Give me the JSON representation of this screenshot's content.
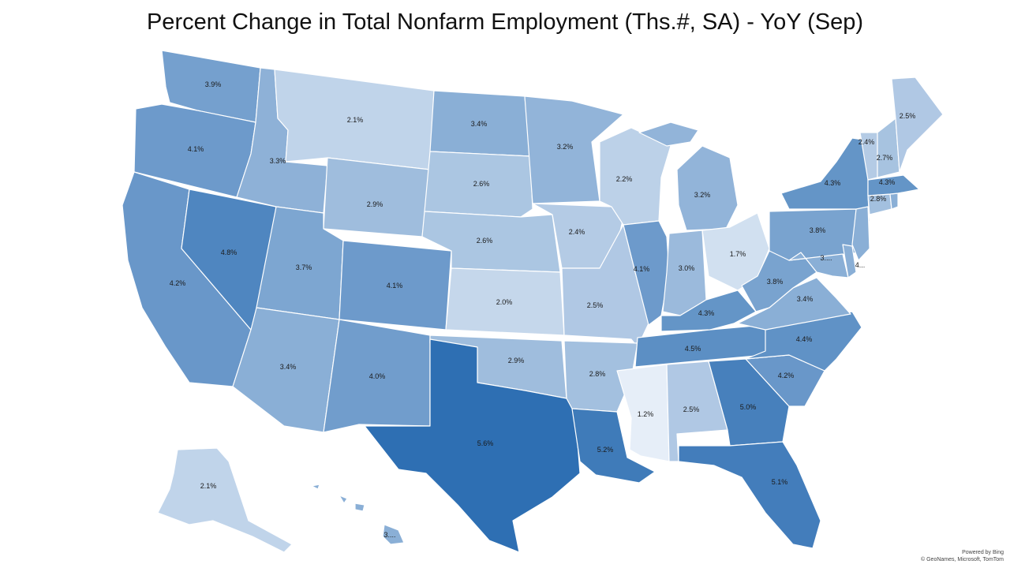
{
  "title": "Percent Change in Total Nonfarm Employment (Ths.#, SA) - YoY (Sep)",
  "credit": {
    "powered_by": "Powered by Bing",
    "sources": "© GeoNames, Microsoft, TomTom"
  },
  "color_scale": {
    "low": "#e6eef8",
    "high": "#2e6fb3",
    "min_value": 1.2,
    "max_value": 5.6
  },
  "states": [
    {
      "id": "WA",
      "value": 3.9,
      "label": "3.9%"
    },
    {
      "id": "OR",
      "value": 4.1,
      "label": "4.1%"
    },
    {
      "id": "CA",
      "value": 4.2,
      "label": "4.2%"
    },
    {
      "id": "NV",
      "value": 4.8,
      "label": "4.8%"
    },
    {
      "id": "ID",
      "value": 3.3,
      "label": "3.3%"
    },
    {
      "id": "MT",
      "value": 2.1,
      "label": "2.1%"
    },
    {
      "id": "WY",
      "value": 2.9,
      "label": "2.9%"
    },
    {
      "id": "UT",
      "value": 3.7,
      "label": "3.7%"
    },
    {
      "id": "AZ",
      "value": 3.4,
      "label": "3.4%"
    },
    {
      "id": "CO",
      "value": 4.1,
      "label": "4.1%"
    },
    {
      "id": "NM",
      "value": 4.0,
      "label": "4.0%"
    },
    {
      "id": "ND",
      "value": 3.4,
      "label": "3.4%"
    },
    {
      "id": "SD",
      "value": 2.6,
      "label": "2.6%"
    },
    {
      "id": "NE",
      "value": 2.6,
      "label": "2.6%"
    },
    {
      "id": "KS",
      "value": 2.0,
      "label": "2.0%"
    },
    {
      "id": "OK",
      "value": 2.9,
      "label": "2.9%"
    },
    {
      "id": "TX",
      "value": 5.6,
      "label": "5.6%"
    },
    {
      "id": "MN",
      "value": 3.2,
      "label": "3.2%"
    },
    {
      "id": "IA",
      "value": 2.4,
      "label": "2.4%"
    },
    {
      "id": "MO",
      "value": 2.5,
      "label": "2.5%"
    },
    {
      "id": "AR",
      "value": 2.8,
      "label": "2.8%"
    },
    {
      "id": "LA",
      "value": 5.2,
      "label": "5.2%"
    },
    {
      "id": "WI",
      "value": 2.2,
      "label": "2.2%"
    },
    {
      "id": "IL",
      "value": 4.1,
      "label": "4.1%"
    },
    {
      "id": "MI",
      "value": 3.2,
      "label": "3.2%"
    },
    {
      "id": "IN",
      "value": 3.0,
      "label": "3.0%"
    },
    {
      "id": "OH",
      "value": 1.7,
      "label": "1.7%"
    },
    {
      "id": "KY",
      "value": 4.3,
      "label": "4.3%"
    },
    {
      "id": "TN",
      "value": 4.5,
      "label": "4.5%"
    },
    {
      "id": "MS",
      "value": 1.2,
      "label": "1.2%"
    },
    {
      "id": "AL",
      "value": 2.5,
      "label": "2.5%"
    },
    {
      "id": "GA",
      "value": 5.0,
      "label": "5.0%"
    },
    {
      "id": "FL",
      "value": 5.1,
      "label": "5.1%"
    },
    {
      "id": "SC",
      "value": 4.2,
      "label": "4.2%"
    },
    {
      "id": "NC",
      "value": 4.4,
      "label": "4.4%"
    },
    {
      "id": "VA",
      "value": 3.4,
      "label": "3.4%"
    },
    {
      "id": "WV",
      "value": 3.8,
      "label": "3.8%"
    },
    {
      "id": "PA",
      "value": 3.8,
      "label": "3.8%"
    },
    {
      "id": "NY",
      "value": 4.3,
      "label": "4.3%"
    },
    {
      "id": "MD",
      "value": null,
      "label": "3...."
    },
    {
      "id": "DE",
      "value": null,
      "label": ""
    },
    {
      "id": "NJ",
      "value": null,
      "label": "4..."
    },
    {
      "id": "CT",
      "value": 2.8,
      "label": "2.8%"
    },
    {
      "id": "RI",
      "value": null,
      "label": ""
    },
    {
      "id": "MA",
      "value": 4.3,
      "label": "4.3%"
    },
    {
      "id": "VT",
      "value": 2.4,
      "label": "2.4%"
    },
    {
      "id": "NH",
      "value": 2.7,
      "label": "2.7%"
    },
    {
      "id": "ME",
      "value": 2.5,
      "label": "2.5%"
    },
    {
      "id": "AK",
      "value": 2.1,
      "label": "2.1%"
    },
    {
      "id": "HI",
      "value": null,
      "label": "3...."
    }
  ]
}
